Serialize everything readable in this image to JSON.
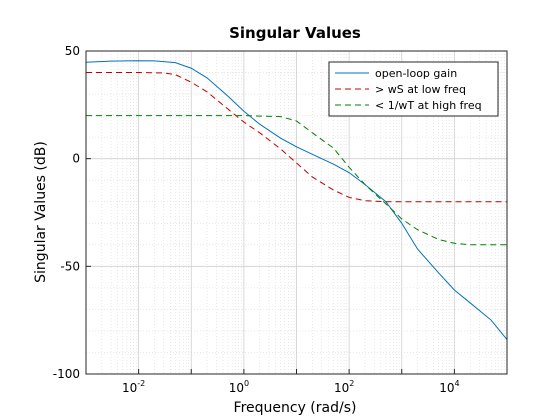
{
  "chart_data": {
    "type": "line",
    "title": "Singular Values",
    "xlabel": "Frequency (rad/s)",
    "ylabel": "Singular Values (dB)",
    "x_scale": "log",
    "xlim": [
      0.001,
      100000
    ],
    "ylim": [
      -100,
      50
    ],
    "grid": true,
    "minor_grid": true,
    "legend_position": "top-right",
    "x_ticks": [
      {
        "base": "10",
        "exp": "-2",
        "value": 0.01
      },
      {
        "base": "10",
        "exp": "0",
        "value": 1
      },
      {
        "base": "10",
        "exp": "2",
        "value": 100
      },
      {
        "base": "10",
        "exp": "4",
        "value": 10000
      }
    ],
    "y_ticks": [
      {
        "label": "50",
        "value": 50
      },
      {
        "label": "0",
        "value": 0
      },
      {
        "label": "-50",
        "value": -50
      },
      {
        "label": "-100",
        "value": -100
      }
    ],
    "series": [
      {
        "name": "open-loop gain",
        "color": "#0072bd",
        "style": "solid",
        "points": [
          [
            0.001,
            44.8
          ],
          [
            0.003,
            45.3
          ],
          [
            0.01,
            45.5
          ],
          [
            0.02,
            45.4
          ],
          [
            0.05,
            44.6
          ],
          [
            0.1,
            42.0
          ],
          [
            0.2,
            37.5
          ],
          [
            0.5,
            29.0
          ],
          [
            1,
            22.0
          ],
          [
            2,
            16.0
          ],
          [
            5,
            9.5
          ],
          [
            10,
            5.5
          ],
          [
            20,
            2.0
          ],
          [
            50,
            -2.5
          ],
          [
            100,
            -6.5
          ],
          [
            200,
            -12.0
          ],
          [
            500,
            -20.0
          ],
          [
            1000,
            -30.0
          ],
          [
            2000,
            -42.0
          ],
          [
            5000,
            -53.0
          ],
          [
            10000,
            -61.0
          ],
          [
            20000,
            -67.0
          ],
          [
            50000,
            -75.0
          ],
          [
            100000,
            -84.0
          ]
        ]
      },
      {
        "name": "> wS at low freq",
        "color": "#c00000",
        "style": "dashed",
        "points": [
          [
            0.001,
            40.0
          ],
          [
            0.01,
            40.0
          ],
          [
            0.03,
            39.8
          ],
          [
            0.05,
            39.0
          ],
          [
            0.1,
            35.5
          ],
          [
            0.2,
            31.0
          ],
          [
            0.5,
            23.0
          ],
          [
            1,
            17.0
          ],
          [
            2,
            12.0
          ],
          [
            5,
            4.5
          ],
          [
            10,
            -2.0
          ],
          [
            20,
            -8.5
          ],
          [
            50,
            -14.5
          ],
          [
            100,
            -18.0
          ],
          [
            200,
            -19.5
          ],
          [
            500,
            -20.0
          ],
          [
            1000,
            -20.0
          ],
          [
            100000,
            -20.0
          ]
        ]
      },
      {
        "name": "< 1/wT at high freq",
        "color": "#008000",
        "style": "dashed",
        "points": [
          [
            0.001,
            20.0
          ],
          [
            0.1,
            20.0
          ],
          [
            1,
            20.0
          ],
          [
            5,
            19.5
          ],
          [
            10,
            17.5
          ],
          [
            20,
            12.0
          ],
          [
            50,
            5.0
          ],
          [
            100,
            -4.0
          ],
          [
            200,
            -12.0
          ],
          [
            500,
            -21.0
          ],
          [
            1000,
            -28.0
          ],
          [
            2000,
            -33.0
          ],
          [
            5000,
            -37.5
          ],
          [
            10000,
            -39.3
          ],
          [
            20000,
            -40.0
          ],
          [
            100000,
            -40.0
          ]
        ]
      }
    ]
  }
}
